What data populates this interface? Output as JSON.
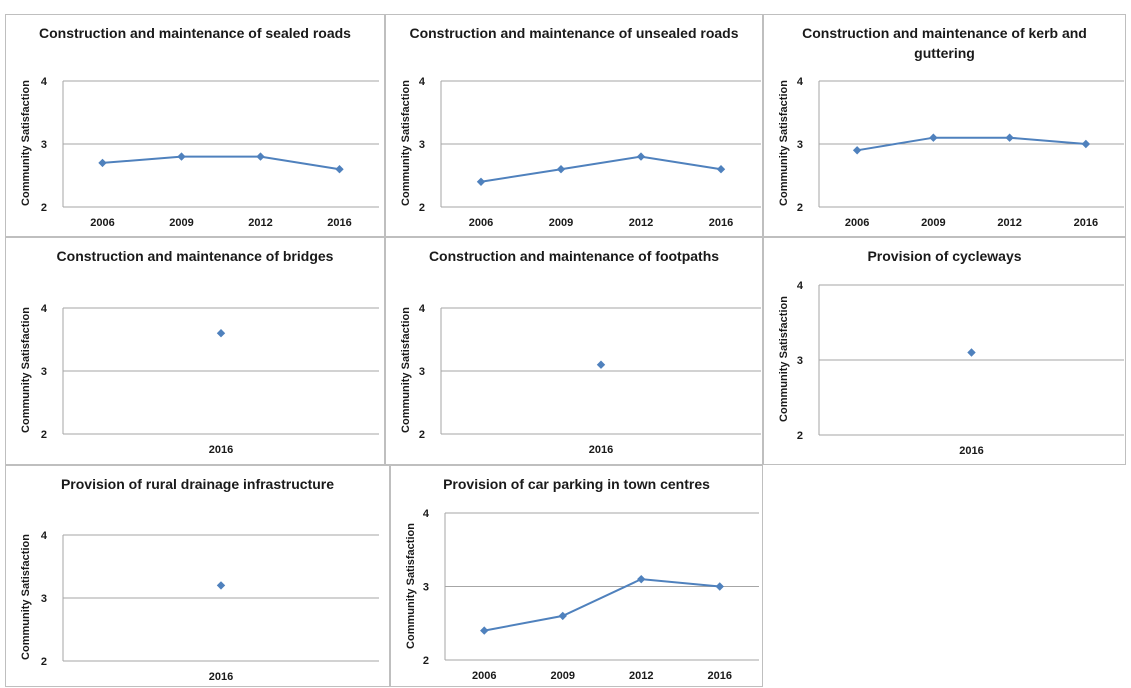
{
  "colors": {
    "series": "#4f81bd",
    "grid": "#a6a6a6",
    "border": "#bfbfbf"
  },
  "chart_data": [
    {
      "type": "line",
      "title": "Construction and maintenance of sealed roads",
      "ylabel": "Community Satisfaction",
      "categories": [
        "2006",
        "2009",
        "2012",
        "2016"
      ],
      "values": [
        2.7,
        2.8,
        2.8,
        2.6
      ],
      "ylim": [
        2,
        4
      ],
      "yticks": [
        "2",
        "3",
        "4"
      ],
      "grid": true
    },
    {
      "type": "line",
      "title": "Construction and maintenance of unsealed roads",
      "ylabel": "Community Satisfaction",
      "categories": [
        "2006",
        "2009",
        "2012",
        "2016"
      ],
      "values": [
        2.4,
        2.6,
        2.8,
        2.6
      ],
      "ylim": [
        2,
        4
      ],
      "yticks": [
        "2",
        "3",
        "4"
      ],
      "grid": true
    },
    {
      "type": "line",
      "title": "Construction and maintenance of kerb and guttering",
      "ylabel": "Community Satisfaction",
      "categories": [
        "2006",
        "2009",
        "2012",
        "2016"
      ],
      "values": [
        2.9,
        3.1,
        3.1,
        3.0
      ],
      "ylim": [
        2,
        4
      ],
      "yticks": [
        "2",
        "3",
        "4"
      ],
      "grid": true
    },
    {
      "type": "scatter",
      "title": "Construction and maintenance of bridges",
      "ylabel": "Community Satisfaction",
      "categories": [
        "2016"
      ],
      "values": [
        3.6
      ],
      "ylim": [
        2,
        4
      ],
      "yticks": [
        "2",
        "3",
        "4"
      ],
      "grid": true
    },
    {
      "type": "scatter",
      "title": "Construction and maintenance of footpaths",
      "ylabel": "Community Satisfaction",
      "categories": [
        "2016"
      ],
      "values": [
        3.1
      ],
      "ylim": [
        2,
        4
      ],
      "yticks": [
        "2",
        "3",
        "4"
      ],
      "grid": true
    },
    {
      "type": "scatter",
      "title": "Provision of cycleways",
      "ylabel": "Community Satisfaction",
      "categories": [
        "2016"
      ],
      "values": [
        3.1
      ],
      "ylim": [
        2,
        4
      ],
      "yticks": [
        "2",
        "3",
        "4"
      ],
      "grid": true
    },
    {
      "type": "scatter",
      "title": "Provision of rural drainage infrastructure",
      "ylabel": "Community Satisfaction",
      "categories": [
        "2016"
      ],
      "values": [
        3.2
      ],
      "ylim": [
        2,
        4
      ],
      "yticks": [
        "2",
        "3",
        "4"
      ],
      "grid": true
    },
    {
      "type": "line",
      "title": "Provision of car parking in town centres",
      "ylabel": "Community Satisfaction",
      "categories": [
        "2006",
        "2009",
        "2012",
        "2016"
      ],
      "values": [
        2.4,
        2.6,
        3.1,
        3.0
      ],
      "ylim": [
        2,
        4
      ],
      "yticks": [
        "2",
        "3",
        "4"
      ],
      "grid": true
    }
  ]
}
